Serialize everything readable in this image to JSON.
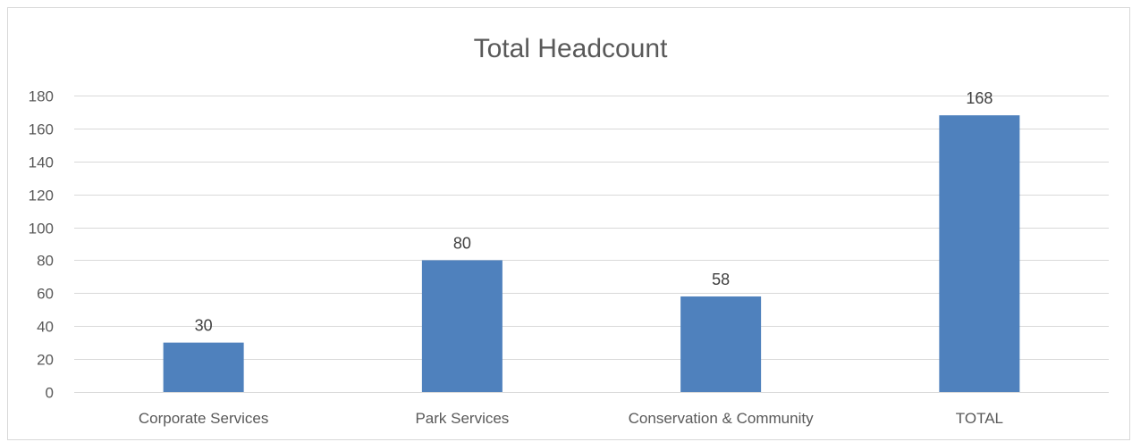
{
  "chart_data": {
    "type": "bar",
    "title": "Total Headcount",
    "xlabel": "",
    "ylabel": "",
    "categories": [
      "Corporate Services",
      "Park Services",
      "Conservation & Community",
      "TOTAL"
    ],
    "values": [
      30,
      80,
      58,
      168
    ],
    "data_labels": [
      "30",
      "80",
      "58",
      "168"
    ],
    "y_ticks": [
      0,
      20,
      40,
      60,
      80,
      100,
      120,
      140,
      160,
      180
    ],
    "ylim": [
      0,
      180
    ],
    "grid": true,
    "legend": "none",
    "colors": {
      "bar": "#4f81bd",
      "grid": "#d9d9d9",
      "text": "#595959"
    }
  }
}
